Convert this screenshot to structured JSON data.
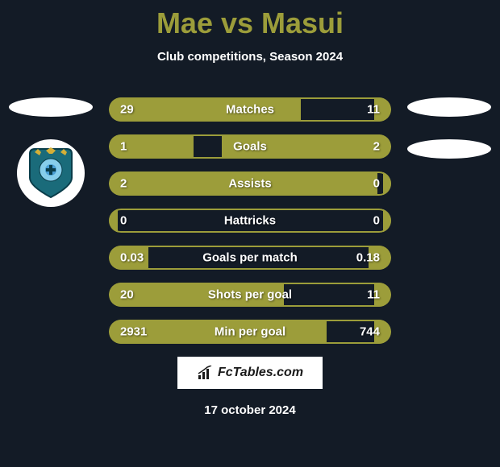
{
  "title": "Mae vs Masui",
  "subtitle": "Club competitions, Season 2024",
  "colors": {
    "background": "#131b26",
    "accent": "#9c9d3a",
    "text": "#ffffff"
  },
  "left_player": {
    "name": "Mae",
    "club_emblem_colors": {
      "primary": "#1a6b7a",
      "secondary": "#0a3d4a",
      "accent": "#d4af37",
      "center": "#87ceeb"
    }
  },
  "right_player": {
    "name": "Masui"
  },
  "stats": [
    {
      "label": "Matches",
      "left_val": "29",
      "right_val": "11",
      "left_pct": 68,
      "right_pct": 6
    },
    {
      "label": "Goals",
      "left_val": "1",
      "right_val": "2",
      "left_pct": 30,
      "right_pct": 60
    },
    {
      "label": "Assists",
      "left_val": "2",
      "right_val": "0",
      "left_pct": 95,
      "right_pct": 3
    },
    {
      "label": "Hattricks",
      "left_val": "0",
      "right_val": "0",
      "left_pct": 3,
      "right_pct": 3
    },
    {
      "label": "Goals per match",
      "left_val": "0.03",
      "right_val": "0.18",
      "left_pct": 14,
      "right_pct": 8
    },
    {
      "label": "Shots per goal",
      "left_val": "20",
      "right_val": "11",
      "left_pct": 62,
      "right_pct": 6
    },
    {
      "label": "Min per goal",
      "left_val": "2931",
      "right_val": "744",
      "left_pct": 77,
      "right_pct": 6
    }
  ],
  "footer_brand": "FcTables.com",
  "date": "17 october 2024"
}
